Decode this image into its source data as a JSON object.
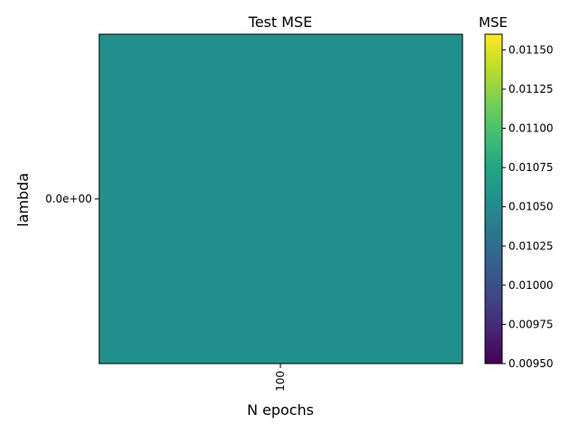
{
  "chart_data": {
    "type": "heatmap",
    "title": "Test MSE",
    "xlabel": "N epochs",
    "ylabel": "lambda",
    "x_categories": [
      "100"
    ],
    "y_categories": [
      "0.0e+00"
    ],
    "values": [
      [
        0.0105
      ]
    ],
    "colorbar": {
      "label": "MSE",
      "colormap": "viridis",
      "range": [
        0.0095,
        0.0116
      ],
      "ticks": [
        "0.00950",
        "0.00975",
        "0.01000",
        "0.01025",
        "0.01050",
        "0.01075",
        "0.01100",
        "0.01125",
        "0.01150"
      ],
      "tick_values": [
        0.0095,
        0.00975,
        0.01,
        0.01025,
        0.0105,
        0.01075,
        0.011,
        0.01125,
        0.0115
      ]
    },
    "grid": false
  },
  "colors": {
    "cell": "#21908d",
    "frame": "#000000"
  }
}
